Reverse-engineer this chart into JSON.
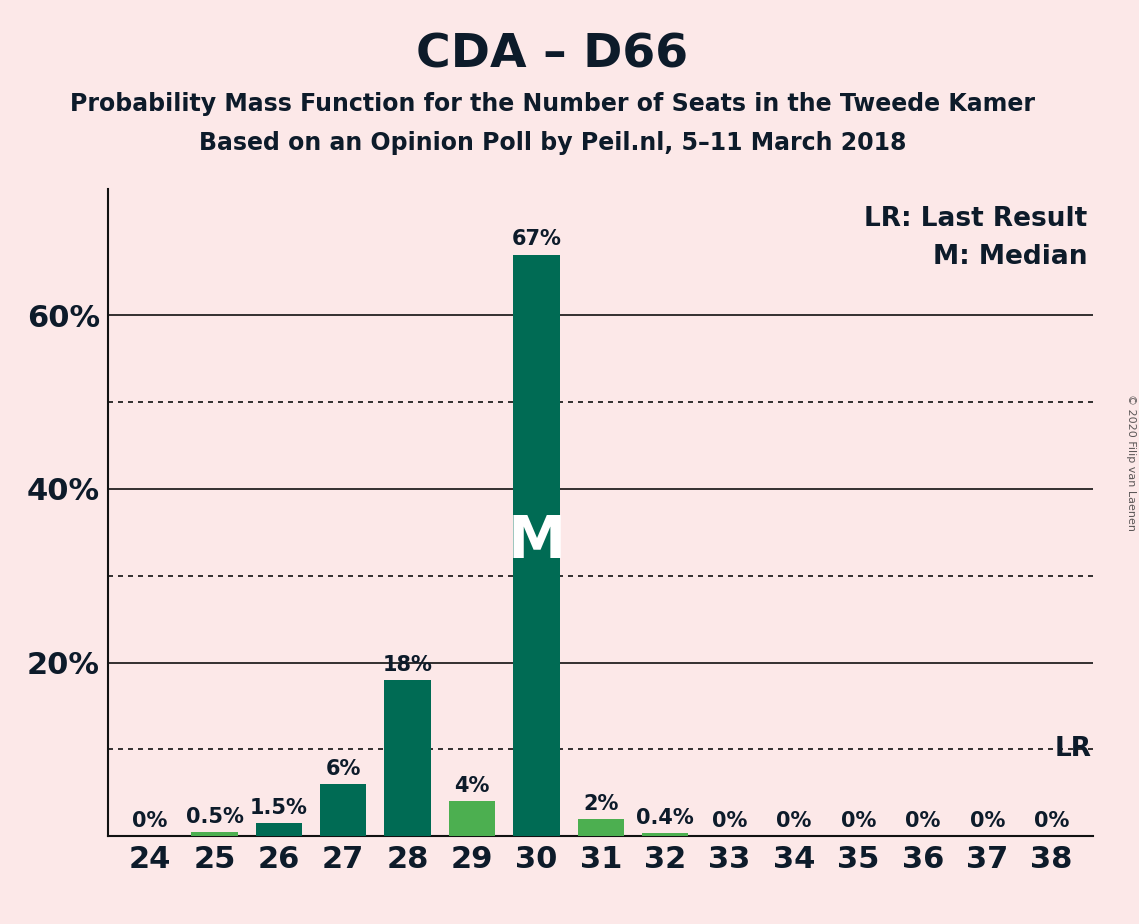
{
  "title": "CDA – D66",
  "subtitle1": "Probability Mass Function for the Number of Seats in the Tweede Kamer",
  "subtitle2": "Based on an Opinion Poll by Peil.nl, 5–11 March 2018",
  "copyright": "© 2020 Filip van Laenen",
  "background_color": "#fce8e8",
  "seats": [
    24,
    25,
    26,
    27,
    28,
    29,
    30,
    31,
    32,
    33,
    34,
    35,
    36,
    37,
    38
  ],
  "probabilities": [
    0.0,
    0.005,
    0.015,
    0.06,
    0.18,
    0.04,
    0.67,
    0.02,
    0.004,
    0.0,
    0.0,
    0.0,
    0.0,
    0.0,
    0.0
  ],
  "labels": [
    "0%",
    "0.5%",
    "1.5%",
    "6%",
    "18%",
    "4%",
    "67%",
    "2%",
    "0.4%",
    "0%",
    "0%",
    "0%",
    "0%",
    "0%",
    "0%"
  ],
  "bar_colors": [
    "#4caf50",
    "#4caf50",
    "#006b54",
    "#006b54",
    "#006b54",
    "#4caf50",
    "#006b54",
    "#4caf50",
    "#4caf50",
    "#4caf50",
    "#4caf50",
    "#4caf50",
    "#4caf50",
    "#4caf50",
    "#4caf50"
  ],
  "median_seat": 30,
  "lr_value": 0.1,
  "yticks_solid": [
    0.2,
    0.4,
    0.6
  ],
  "yticks_dotted": [
    0.1,
    0.3,
    0.5
  ],
  "ylim": [
    0,
    0.745
  ],
  "title_fontsize": 34,
  "subtitle_fontsize": 17,
  "tick_fontsize": 22,
  "bar_label_fontsize": 15,
  "legend_fontsize": 19
}
